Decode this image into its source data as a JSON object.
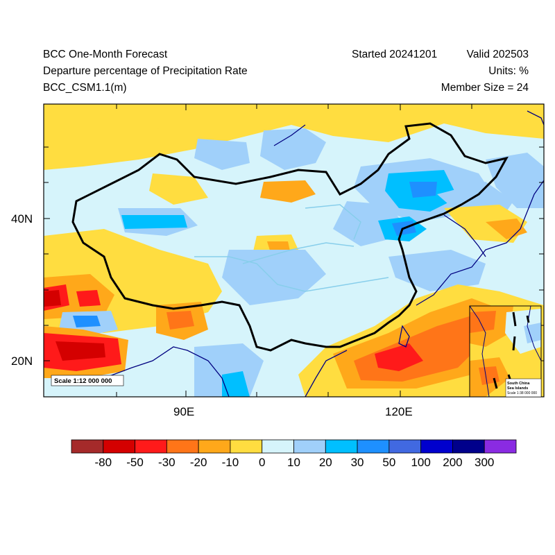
{
  "header": {
    "title": "BCC One-Month Forecast",
    "variable": "Departure percentage of Precipitation Rate",
    "model": "BCC_CSM1.1(m)",
    "started": "Started 20241201",
    "valid": "Valid 202503",
    "units": "Units: %",
    "members": "Member Size = 24"
  },
  "axes": {
    "y_ticks": [
      "40N",
      "20N"
    ],
    "x_ticks": [
      "90E",
      "120E"
    ]
  },
  "map": {
    "scale_label": "Scale 1:12 000 000",
    "inset": {
      "title_line1": "South China",
      "title_line2": "Sea Islands",
      "scale": "Scale 1:38 000 000"
    }
  },
  "colorbar": {
    "colors": [
      "#a52a2a",
      "#d40000",
      "#ff1a1a",
      "#ff7518",
      "#ffa81a",
      "#ffdd40",
      "#d6f4fb",
      "#a0d0fa",
      "#00bfff",
      "#1e90ff",
      "#4169e1",
      "#0000cd",
      "#00008b",
      "#8a2be2"
    ],
    "labels": [
      "-80",
      "-50",
      "-30",
      "-20",
      "-10",
      "0",
      "10",
      "20",
      "30",
      "50",
      "100",
      "200",
      "300"
    ]
  }
}
